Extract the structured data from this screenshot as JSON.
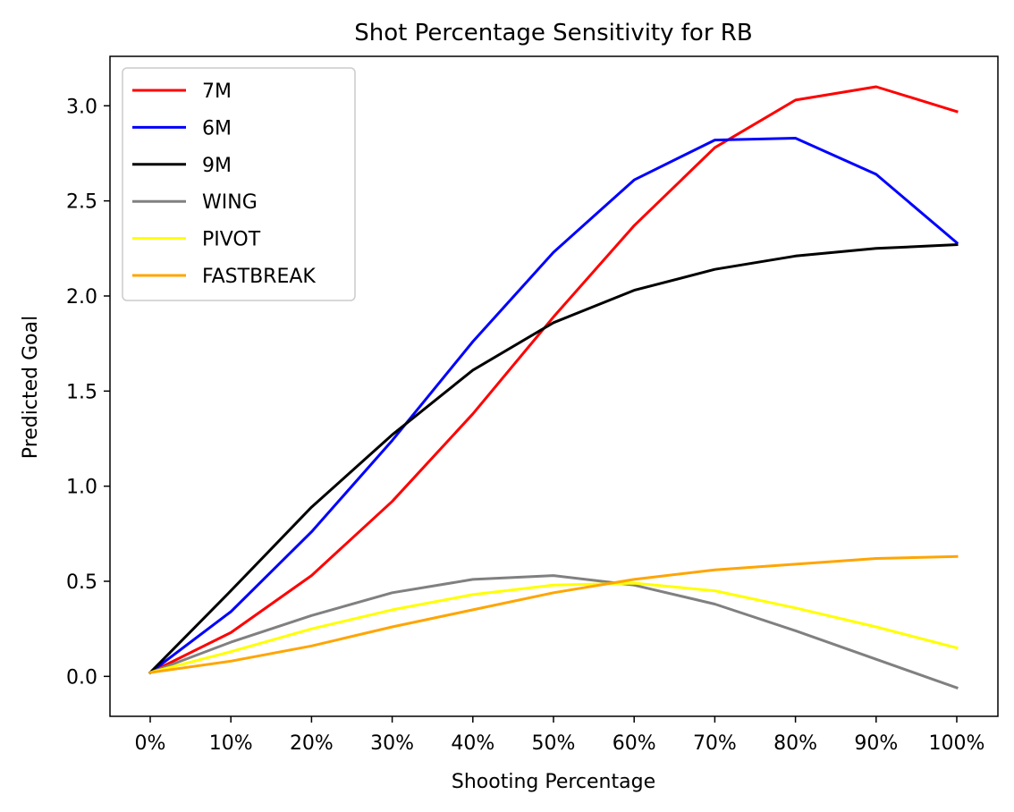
{
  "chart_data": {
    "type": "line",
    "title": "Shot Percentage Sensitivity for RB",
    "xlabel": "Shooting Percentage",
    "ylabel": "Predicted Goal",
    "categories": [
      "0%",
      "10%",
      "20%",
      "30%",
      "40%",
      "50%",
      "60%",
      "70%",
      "80%",
      "90%",
      "100%"
    ],
    "ylim": [
      -0.21,
      3.26
    ],
    "yticks": [
      0.0,
      0.5,
      1.0,
      1.5,
      2.0,
      2.5,
      3.0
    ],
    "ytick_labels": [
      "0.0",
      "0.5",
      "1.0",
      "1.5",
      "2.0",
      "2.5",
      "3.0"
    ],
    "grid": false,
    "legend_position": "top-left",
    "series": [
      {
        "name": "7M",
        "color": "#ff0000",
        "values": [
          0.02,
          0.23,
          0.53,
          0.92,
          1.38,
          1.89,
          2.37,
          2.78,
          3.03,
          3.1,
          2.97
        ]
      },
      {
        "name": "6M",
        "color": "#0000ff",
        "values": [
          0.02,
          0.34,
          0.76,
          1.24,
          1.76,
          2.23,
          2.61,
          2.82,
          2.83,
          2.64,
          2.28
        ]
      },
      {
        "name": "9M",
        "color": "#000000",
        "values": [
          0.02,
          0.45,
          0.89,
          1.27,
          1.61,
          1.86,
          2.03,
          2.14,
          2.21,
          2.25,
          2.27
        ]
      },
      {
        "name": "WING",
        "color": "#808080",
        "values": [
          0.02,
          0.18,
          0.32,
          0.44,
          0.51,
          0.53,
          0.48,
          0.38,
          0.24,
          0.09,
          -0.06
        ]
      },
      {
        "name": "PIVOT",
        "color": "#ffff00",
        "values": [
          0.02,
          0.13,
          0.25,
          0.35,
          0.43,
          0.48,
          0.49,
          0.45,
          0.36,
          0.26,
          0.15
        ]
      },
      {
        "name": "FASTBREAK",
        "color": "#ffa500",
        "values": [
          0.02,
          0.08,
          0.16,
          0.26,
          0.35,
          0.44,
          0.51,
          0.56,
          0.59,
          0.62,
          0.63
        ]
      }
    ]
  }
}
